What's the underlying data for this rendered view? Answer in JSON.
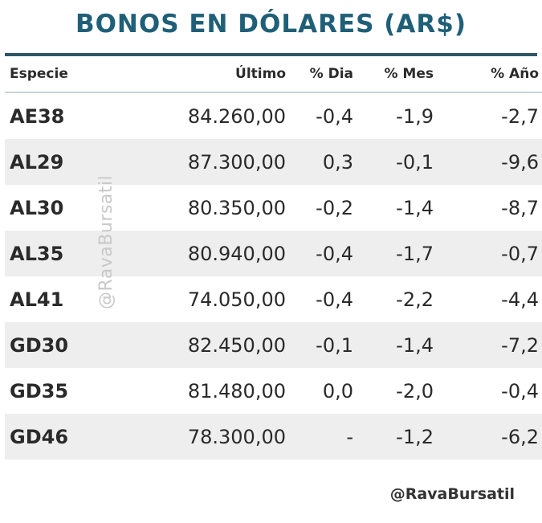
{
  "title": "BONOS EN DÓLARES (AR$)",
  "headers": {
    "especie": "Especie",
    "ultimo": "Último",
    "dia": "% Dia",
    "mes": "% Mes",
    "anio": "% Año"
  },
  "rows": [
    {
      "especie": "AE38",
      "ultimo": "84.260,00",
      "dia": "-0,4",
      "mes": "-1,9",
      "anio": "-2,7",
      "dia_state": "neg"
    },
    {
      "especie": "AL29",
      "ultimo": "87.300,00",
      "dia": "0,3",
      "mes": "-0,1",
      "anio": "-9,6",
      "dia_state": "pos"
    },
    {
      "especie": "AL30",
      "ultimo": "80.350,00",
      "dia": "-0,2",
      "mes": "-1,4",
      "anio": "-8,7",
      "dia_state": "neg"
    },
    {
      "especie": "AL35",
      "ultimo": "80.940,00",
      "dia": "-0,4",
      "mes": "-1,7",
      "anio": "-0,7",
      "dia_state": "neg"
    },
    {
      "especie": "AL41",
      "ultimo": "74.050,00",
      "dia": "-0,4",
      "mes": "-2,2",
      "anio": "-4,4",
      "dia_state": "neg"
    },
    {
      "especie": "GD30",
      "ultimo": "82.450,00",
      "dia": "-0,1",
      "mes": "-1,4",
      "anio": "-7,2",
      "dia_state": "neg"
    },
    {
      "especie": "GD35",
      "ultimo": "81.480,00",
      "dia": "0,0",
      "mes": "-2,0",
      "anio": "-0,4",
      "dia_state": "pos"
    },
    {
      "especie": "GD46",
      "ultimo": "78.300,00",
      "dia": "-",
      "mes": "-1,2",
      "anio": "-6,2",
      "dia_state": "neu"
    }
  ],
  "watermark": "@RavaBursatil",
  "footer_handle": "@RavaBursatil",
  "colors": {
    "title": "#1f5f78",
    "negative": "#b24a4a",
    "positive": "#3f9a3a",
    "row_stripe": "#eeeeee"
  }
}
